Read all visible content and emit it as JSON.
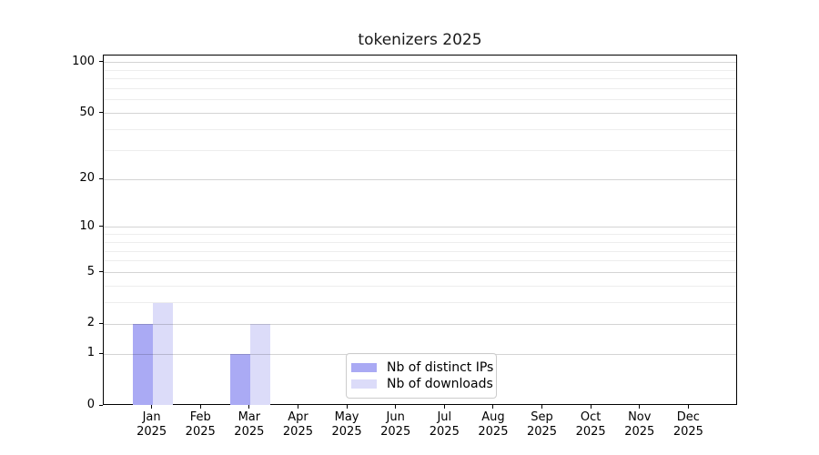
{
  "chart_data": {
    "type": "bar",
    "title": "tokenizers 2025",
    "categories": [
      {
        "month": "Jan",
        "year": "2025"
      },
      {
        "month": "Feb",
        "year": "2025"
      },
      {
        "month": "Mar",
        "year": "2025"
      },
      {
        "month": "Apr",
        "year": "2025"
      },
      {
        "month": "May",
        "year": "2025"
      },
      {
        "month": "Jun",
        "year": "2025"
      },
      {
        "month": "Jul",
        "year": "2025"
      },
      {
        "month": "Aug",
        "year": "2025"
      },
      {
        "month": "Sep",
        "year": "2025"
      },
      {
        "month": "Oct",
        "year": "2025"
      },
      {
        "month": "Nov",
        "year": "2025"
      },
      {
        "month": "Dec",
        "year": "2025"
      }
    ],
    "series": [
      {
        "name": "Nb of distinct IPs",
        "color": "#aaaaf4",
        "values": [
          2,
          0,
          1,
          0,
          0,
          0,
          0,
          0,
          0,
          0,
          0,
          0
        ]
      },
      {
        "name": "Nb of downloads",
        "color": "#dcdcf9",
        "values": [
          3,
          0,
          2,
          0,
          0,
          0,
          0,
          0,
          0,
          0,
          0,
          0
        ]
      }
    ],
    "xlabel": "",
    "ylabel": "",
    "y_scale": "log1p",
    "ylim": [
      0,
      110
    ],
    "y_ticks": [
      0,
      1,
      2,
      5,
      10,
      20,
      50,
      100
    ],
    "y_minor_ticks": [
      3,
      4,
      6,
      7,
      8,
      9,
      30,
      40,
      60,
      70,
      80,
      90
    ],
    "grid": "both",
    "legend_position": "lower center",
    "axis_color": "#000000",
    "background_color": "#ffffff"
  }
}
